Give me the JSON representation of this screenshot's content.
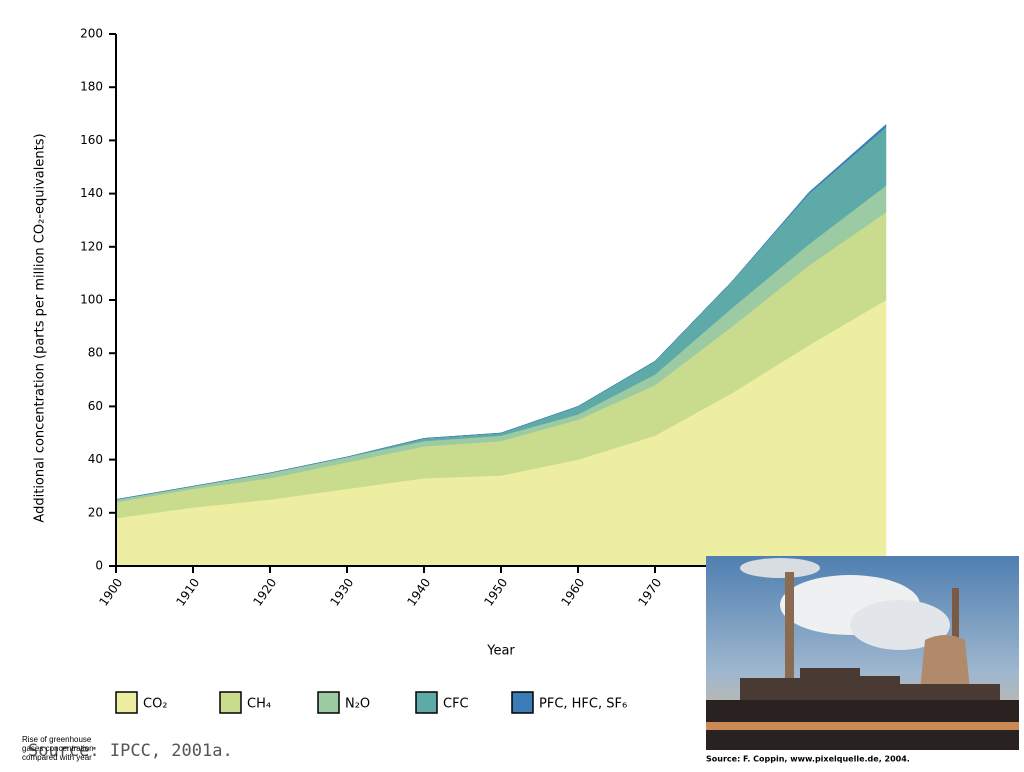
{
  "chart_data": {
    "type": "stacked-area",
    "y_label": "Additional concentration (parts per million CO₂-equivalents)",
    "x_label": "Year",
    "x": [
      1900,
      1910,
      1920,
      1930,
      1940,
      1950,
      1960,
      1970,
      1980,
      1990,
      2000
    ],
    "xlim": [
      1900,
      2000
    ],
    "xticks": [
      1900,
      1910,
      1920,
      1930,
      1940,
      1950,
      1960,
      1970
    ],
    "ylim": [
      0,
      200
    ],
    "yticks": [
      0,
      20,
      40,
      60,
      80,
      100,
      120,
      140,
      160,
      180,
      200
    ],
    "series": [
      {
        "name": "CO₂",
        "color": "#eeeea2",
        "values": [
          18,
          22,
          25,
          29,
          33,
          34,
          40,
          49,
          65,
          83,
          100
        ]
      },
      {
        "name": "CH₄",
        "color": "#c9dc8e",
        "values": [
          6,
          7,
          8,
          10,
          12,
          13,
          15,
          19,
          25,
          30,
          33
        ]
      },
      {
        "name": "N₂O",
        "color": "#9ccaa2",
        "values": [
          1,
          1,
          2,
          2,
          2,
          2,
          2,
          4,
          7,
          8,
          10
        ]
      },
      {
        "name": "CFC",
        "color": "#5eaaa8",
        "values": [
          0,
          0,
          0,
          0,
          1,
          1,
          3,
          5,
          10,
          19,
          22
        ]
      },
      {
        "name": "PFC, HFC, SF₆",
        "color": "#3b7cb8",
        "values": [
          0,
          0,
          0,
          0,
          0,
          0,
          0,
          0,
          0,
          0.5,
          1
        ]
      }
    ],
    "source": "Source: IPCC, 2001a.",
    "caption": "Rise of greenhouse gases concentration compared with year",
    "photo_source": "Source: F. Coppin, www.pixelquelle.de, 2004."
  }
}
